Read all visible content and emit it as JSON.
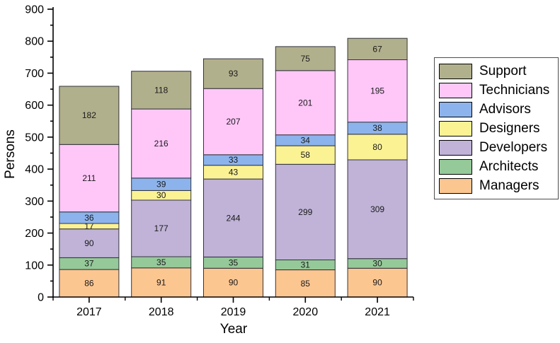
{
  "chart_data": {
    "type": "bar",
    "stacked": true,
    "title": "",
    "xlabel": "Year",
    "ylabel": "Persons",
    "categories": [
      "2017",
      "2018",
      "2019",
      "2020",
      "2021"
    ],
    "series": [
      {
        "name": "Managers",
        "color": "#FCC691",
        "values": [
          86,
          91,
          90,
          85,
          90
        ]
      },
      {
        "name": "Architects",
        "color": "#95C999",
        "values": [
          37,
          35,
          35,
          31,
          30
        ]
      },
      {
        "name": "Developers",
        "color": "#C0B3D7",
        "values": [
          90,
          177,
          244,
          299,
          309
        ]
      },
      {
        "name": "Designers",
        "color": "#FBF294",
        "values": [
          17,
          30,
          43,
          58,
          80
        ]
      },
      {
        "name": "Advisors",
        "color": "#8DB3EC",
        "values": [
          36,
          39,
          33,
          34,
          38
        ]
      },
      {
        "name": "Technicians",
        "color": "#FEC7F8",
        "values": [
          211,
          216,
          207,
          201,
          195
        ]
      },
      {
        "name": "Support",
        "color": "#B1B08C",
        "values": [
          182,
          118,
          93,
          75,
          67
        ]
      }
    ],
    "data_labels": true,
    "ylim": [
      0,
      900
    ],
    "ytick_step": 100,
    "yminor_step": 50,
    "grid": false,
    "legend_position": "right",
    "legend_order_top_to_bottom": [
      "Support",
      "Technicians",
      "Advisors",
      "Designers",
      "Developers",
      "Architects",
      "Managers"
    ],
    "axis_color": "#000000",
    "bar_border_color": "#33333d"
  }
}
